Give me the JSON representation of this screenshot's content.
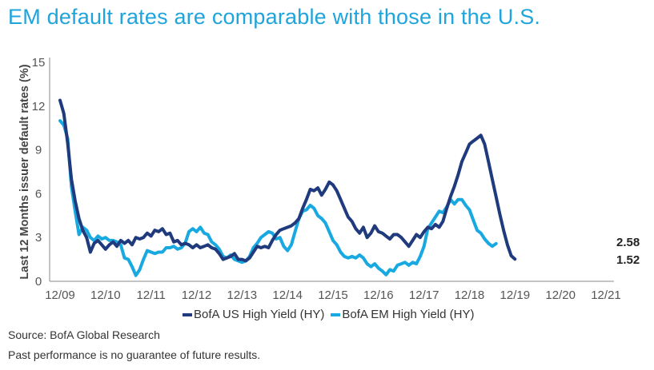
{
  "title": "EM default rates are comparable with those in the U.S.",
  "source": "Source: BofA Global Research",
  "disclaimer": "Past performance is no guarantee of future results.",
  "colors": {
    "title": "#1fa4dc",
    "us": "#1f3a7d",
    "em": "#19a9e1"
  },
  "chart_data": {
    "type": "line",
    "ylabel": "Last 12 Months issuer default rates (%)",
    "xlabel": "",
    "ylim": [
      0,
      15
    ],
    "yticks": [
      0,
      3,
      6,
      9,
      12,
      15
    ],
    "xlim": [
      0,
      144
    ],
    "xticks": [
      {
        "at": 0,
        "label": "12/09"
      },
      {
        "at": 12,
        "label": "12/10"
      },
      {
        "at": 24,
        "label": "12/11"
      },
      {
        "at": 36,
        "label": "12/12"
      },
      {
        "at": 48,
        "label": "12/13"
      },
      {
        "at": 60,
        "label": "12/14"
      },
      {
        "at": 72,
        "label": "12/15"
      },
      {
        "at": 84,
        "label": "12/16"
      },
      {
        "at": 96,
        "label": "12/17"
      },
      {
        "at": 108,
        "label": "12/18"
      },
      {
        "at": 120,
        "label": "12/19"
      },
      {
        "at": 132,
        "label": "12/20"
      },
      {
        "at": 144,
        "label": "12/21"
      }
    ],
    "grid": false,
    "legend_position": "bottom",
    "series": [
      {
        "name": "BofA US High Yield (HY)",
        "end_label": "1.52",
        "points": [
          [
            0,
            12.4
          ],
          [
            1,
            11.5
          ],
          [
            2,
            9.5
          ],
          [
            3,
            7.0
          ],
          [
            4,
            5.5
          ],
          [
            5,
            4.3
          ],
          [
            6,
            3.5
          ],
          [
            7,
            3.0
          ],
          [
            8,
            2.0
          ],
          [
            9,
            2.6
          ],
          [
            10,
            2.8
          ],
          [
            11,
            2.5
          ],
          [
            12,
            2.2
          ],
          [
            13,
            2.5
          ],
          [
            14,
            2.7
          ],
          [
            15,
            2.4
          ],
          [
            16,
            2.8
          ],
          [
            17,
            2.6
          ],
          [
            18,
            2.8
          ],
          [
            19,
            2.5
          ],
          [
            20,
            3.0
          ],
          [
            21,
            2.9
          ],
          [
            22,
            3.0
          ],
          [
            23,
            3.3
          ],
          [
            24,
            3.1
          ],
          [
            25,
            3.5
          ],
          [
            26,
            3.4
          ],
          [
            27,
            3.6
          ],
          [
            28,
            3.2
          ],
          [
            29,
            3.3
          ],
          [
            30,
            2.7
          ],
          [
            31,
            2.8
          ],
          [
            32,
            2.5
          ],
          [
            33,
            2.6
          ],
          [
            34,
            2.5
          ],
          [
            35,
            2.3
          ],
          [
            36,
            2.5
          ],
          [
            37,
            2.3
          ],
          [
            38,
            2.4
          ],
          [
            39,
            2.5
          ],
          [
            40,
            2.3
          ],
          [
            41,
            2.2
          ],
          [
            42,
            1.9
          ],
          [
            43,
            1.5
          ],
          [
            44,
            1.6
          ],
          [
            45,
            1.7
          ],
          [
            46,
            1.9
          ],
          [
            47,
            1.5
          ],
          [
            48,
            1.5
          ],
          [
            49,
            1.4
          ],
          [
            50,
            1.6
          ],
          [
            51,
            2.0
          ],
          [
            52,
            2.4
          ],
          [
            53,
            2.3
          ],
          [
            54,
            2.4
          ],
          [
            55,
            2.3
          ],
          [
            56,
            2.8
          ],
          [
            57,
            3.2
          ],
          [
            58,
            3.5
          ],
          [
            59,
            3.6
          ],
          [
            60,
            3.7
          ],
          [
            61,
            3.8
          ],
          [
            62,
            4.0
          ],
          [
            63,
            4.3
          ],
          [
            64,
            5.0
          ],
          [
            65,
            5.6
          ],
          [
            66,
            6.3
          ],
          [
            67,
            6.2
          ],
          [
            68,
            6.4
          ],
          [
            69,
            5.9
          ],
          [
            70,
            6.3
          ],
          [
            71,
            6.8
          ],
          [
            72,
            6.6
          ],
          [
            73,
            6.2
          ],
          [
            74,
            5.6
          ],
          [
            75,
            5.0
          ],
          [
            76,
            4.4
          ],
          [
            77,
            4.1
          ],
          [
            78,
            3.6
          ],
          [
            79,
            3.3
          ],
          [
            80,
            3.7
          ],
          [
            81,
            3.0
          ],
          [
            82,
            3.3
          ],
          [
            83,
            3.8
          ],
          [
            84,
            3.4
          ],
          [
            85,
            3.3
          ],
          [
            86,
            3.1
          ],
          [
            87,
            2.9
          ],
          [
            88,
            3.2
          ],
          [
            89,
            3.2
          ],
          [
            90,
            3.0
          ],
          [
            91,
            2.7
          ],
          [
            92,
            2.4
          ],
          [
            93,
            2.8
          ],
          [
            94,
            3.2
          ],
          [
            95,
            3.0
          ],
          [
            96,
            3.4
          ],
          [
            97,
            3.7
          ],
          [
            98,
            3.6
          ],
          [
            99,
            3.9
          ],
          [
            100,
            3.7
          ],
          [
            101,
            4.1
          ],
          [
            102,
            5.0
          ],
          [
            103,
            5.8
          ],
          [
            104,
            6.5
          ],
          [
            105,
            7.3
          ],
          [
            106,
            8.2
          ],
          [
            107,
            8.8
          ],
          [
            108,
            9.4
          ],
          [
            109,
            9.6
          ],
          [
            110,
            9.8
          ],
          [
            111,
            10.0
          ],
          [
            112,
            9.4
          ],
          [
            113,
            8.2
          ],
          [
            114,
            7.0
          ],
          [
            115,
            5.8
          ],
          [
            116,
            4.6
          ],
          [
            117,
            3.5
          ],
          [
            118,
            2.5
          ],
          [
            119,
            1.75
          ],
          [
            120,
            1.52
          ]
        ]
      },
      {
        "name": "BofA EM High Yield (HY)",
        "end_label": "2.58",
        "points": [
          [
            0,
            11.0
          ],
          [
            1,
            10.7
          ],
          [
            2,
            9.8
          ],
          [
            3,
            6.5
          ],
          [
            4,
            4.8
          ],
          [
            5,
            3.2
          ],
          [
            6,
            3.7
          ],
          [
            7,
            3.5
          ],
          [
            8,
            3.0
          ],
          [
            9,
            2.8
          ],
          [
            10,
            3.1
          ],
          [
            11,
            2.9
          ],
          [
            12,
            3.0
          ],
          [
            13,
            2.8
          ],
          [
            14,
            2.8
          ],
          [
            15,
            2.7
          ],
          [
            16,
            2.5
          ],
          [
            17,
            1.6
          ],
          [
            18,
            1.5
          ],
          [
            19,
            1.0
          ],
          [
            20,
            0.4
          ],
          [
            21,
            0.8
          ],
          [
            22,
            1.5
          ],
          [
            23,
            2.1
          ],
          [
            24,
            2.0
          ],
          [
            25,
            1.9
          ],
          [
            26,
            2.0
          ],
          [
            27,
            2.0
          ],
          [
            28,
            2.3
          ],
          [
            29,
            2.3
          ],
          [
            30,
            2.4
          ],
          [
            31,
            2.2
          ],
          [
            32,
            2.3
          ],
          [
            33,
            2.6
          ],
          [
            34,
            3.4
          ],
          [
            35,
            3.6
          ],
          [
            36,
            3.4
          ],
          [
            37,
            3.7
          ],
          [
            38,
            3.3
          ],
          [
            39,
            3.2
          ],
          [
            40,
            2.7
          ],
          [
            41,
            2.5
          ],
          [
            42,
            2.2
          ],
          [
            43,
            1.7
          ],
          [
            44,
            1.6
          ],
          [
            45,
            1.8
          ],
          [
            46,
            1.5
          ],
          [
            47,
            1.4
          ],
          [
            48,
            1.3
          ],
          [
            49,
            1.4
          ],
          [
            50,
            1.7
          ],
          [
            51,
            2.3
          ],
          [
            52,
            2.6
          ],
          [
            53,
            3.0
          ],
          [
            54,
            3.2
          ],
          [
            55,
            3.4
          ],
          [
            56,
            3.3
          ],
          [
            57,
            2.9
          ],
          [
            58,
            3.0
          ],
          [
            59,
            2.4
          ],
          [
            60,
            2.1
          ],
          [
            61,
            2.5
          ],
          [
            62,
            3.4
          ],
          [
            63,
            4.3
          ],
          [
            64,
            4.8
          ],
          [
            65,
            4.9
          ],
          [
            66,
            5.2
          ],
          [
            67,
            5.0
          ],
          [
            68,
            4.5
          ],
          [
            69,
            4.3
          ],
          [
            70,
            4.0
          ],
          [
            71,
            3.4
          ],
          [
            72,
            2.8
          ],
          [
            73,
            2.5
          ],
          [
            74,
            2.0
          ],
          [
            75,
            1.7
          ],
          [
            76,
            1.6
          ],
          [
            77,
            1.7
          ],
          [
            78,
            1.6
          ],
          [
            79,
            1.8
          ],
          [
            80,
            1.6
          ],
          [
            81,
            1.2
          ],
          [
            82,
            1.0
          ],
          [
            83,
            1.2
          ],
          [
            84,
            0.9
          ],
          [
            85,
            0.7
          ],
          [
            86,
            0.45
          ],
          [
            87,
            0.8
          ],
          [
            88,
            0.7
          ],
          [
            89,
            1.1
          ],
          [
            90,
            1.2
          ],
          [
            91,
            1.3
          ],
          [
            92,
            1.1
          ],
          [
            93,
            1.3
          ],
          [
            94,
            1.2
          ],
          [
            95,
            1.7
          ],
          [
            96,
            2.4
          ],
          [
            97,
            3.6
          ],
          [
            98,
            4.0
          ],
          [
            99,
            4.4
          ],
          [
            100,
            4.8
          ],
          [
            101,
            4.7
          ],
          [
            102,
            5.1
          ],
          [
            103,
            5.6
          ],
          [
            104,
            5.3
          ],
          [
            105,
            5.6
          ],
          [
            106,
            5.6
          ],
          [
            107,
            5.2
          ],
          [
            108,
            4.9
          ],
          [
            109,
            4.2
          ],
          [
            110,
            3.5
          ],
          [
            111,
            3.3
          ],
          [
            112,
            2.9
          ],
          [
            113,
            2.6
          ],
          [
            114,
            2.4
          ],
          [
            115,
            2.58
          ]
        ]
      }
    ]
  }
}
